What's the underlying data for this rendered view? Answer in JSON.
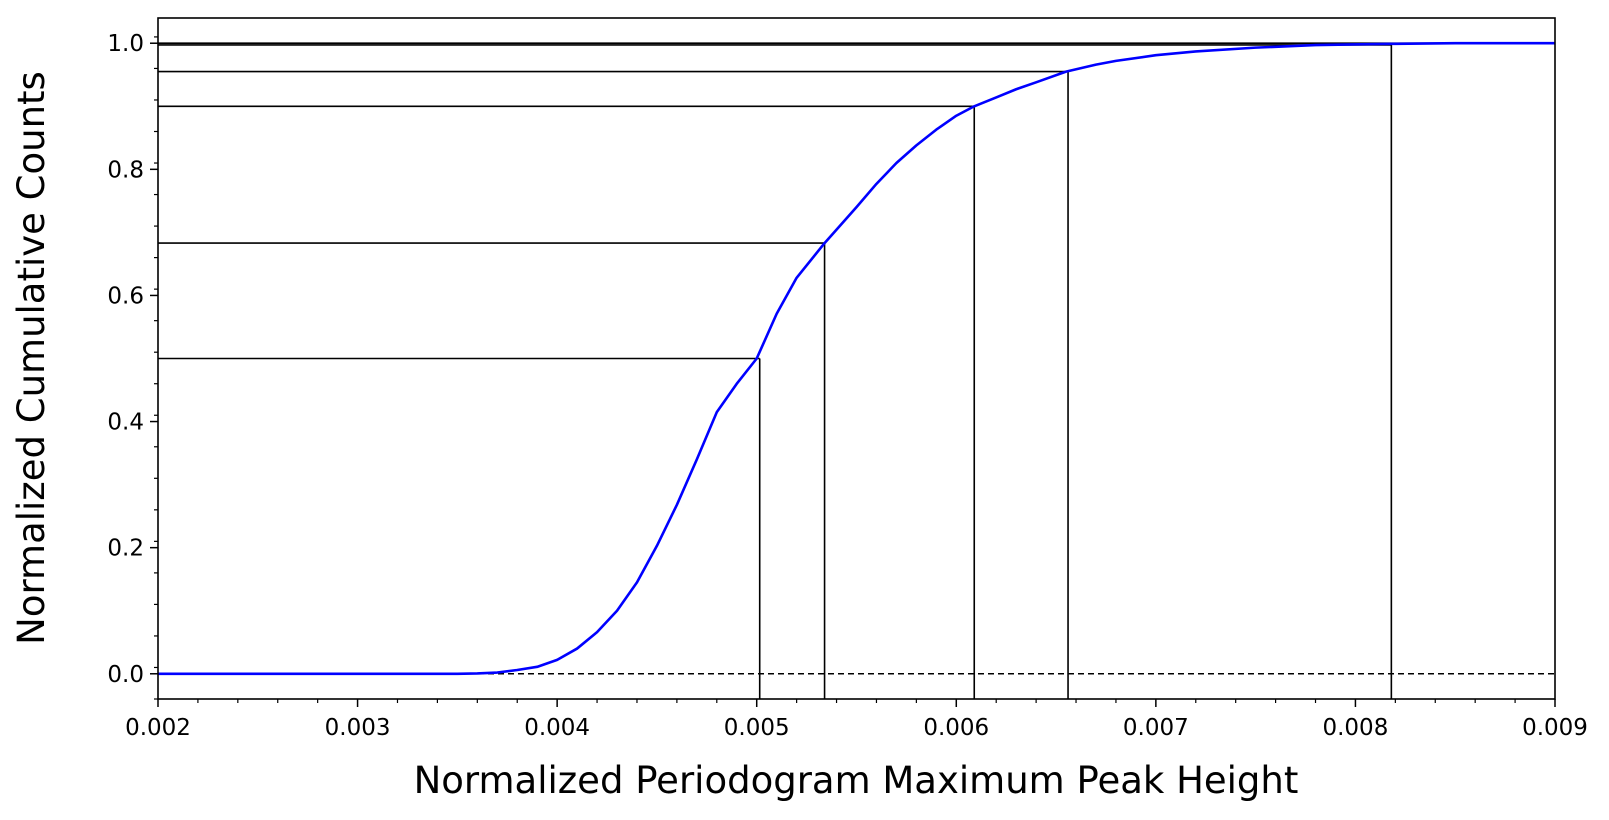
{
  "chart_data": {
    "type": "line",
    "title": "",
    "xlabel": "Normalized Periodogram Maximum Peak Height",
    "ylabel": "Normalized Cumulative Counts",
    "xlim": [
      0.002,
      0.009
    ],
    "ylim": [
      -0.04,
      1.04
    ],
    "grid": false,
    "x_ticks": [
      0.002,
      0.003,
      0.004,
      0.005,
      0.006,
      0.007,
      0.008,
      0.009
    ],
    "x_tick_labels": [
      "0.002",
      "0.003",
      "0.004",
      "0.005",
      "0.006",
      "0.007",
      "0.008",
      "0.009"
    ],
    "y_ticks": [
      0.0,
      0.2,
      0.4,
      0.6,
      0.8,
      1.0
    ],
    "y_tick_labels": [
      "0.0",
      "0.2",
      "0.4",
      "0.6",
      "0.8",
      "1.0"
    ],
    "series": [
      {
        "color": "#0000ff",
        "x": [
          0.002,
          0.0025,
          0.003,
          0.0033,
          0.0035,
          0.0036,
          0.0037,
          0.0038,
          0.0039,
          0.004,
          0.0041,
          0.0042,
          0.0043,
          0.0044,
          0.0045,
          0.0046,
          0.0047,
          0.0048,
          0.0049,
          0.005,
          0.0051,
          0.0052,
          0.00534,
          0.0055,
          0.0056,
          0.0057,
          0.0058,
          0.0059,
          0.006,
          0.00609,
          0.0062,
          0.0063,
          0.0064,
          0.00655,
          0.0067,
          0.0068,
          0.007,
          0.0072,
          0.0075,
          0.0078,
          0.00818,
          0.0085,
          0.009
        ],
        "y": [
          0.0,
          0.0,
          0.0,
          0.0,
          0.0,
          0.0006,
          0.002,
          0.006,
          0.011,
          0.022,
          0.04,
          0.066,
          0.1,
          0.145,
          0.203,
          0.268,
          0.34,
          0.415,
          0.46,
          0.5,
          0.571,
          0.628,
          0.683,
          0.74,
          0.777,
          0.81,
          0.838,
          0.863,
          0.885,
          0.9,
          0.914,
          0.927,
          0.938,
          0.955,
          0.966,
          0.972,
          0.981,
          0.987,
          0.993,
          0.997,
          0.999,
          1.0,
          1.0
        ]
      }
    ],
    "reference_lines": {
      "quantiles": [
        {
          "x": 0.005015,
          "y": 0.5
        },
        {
          "x": 0.00534,
          "y": 0.683
        },
        {
          "x": 0.00609,
          "y": 0.9
        },
        {
          "x": 0.00656,
          "y": 0.955
        },
        {
          "x": 0.00818,
          "y": 0.9973
        }
      ],
      "baseline_dashed_y": 0.0
    }
  }
}
